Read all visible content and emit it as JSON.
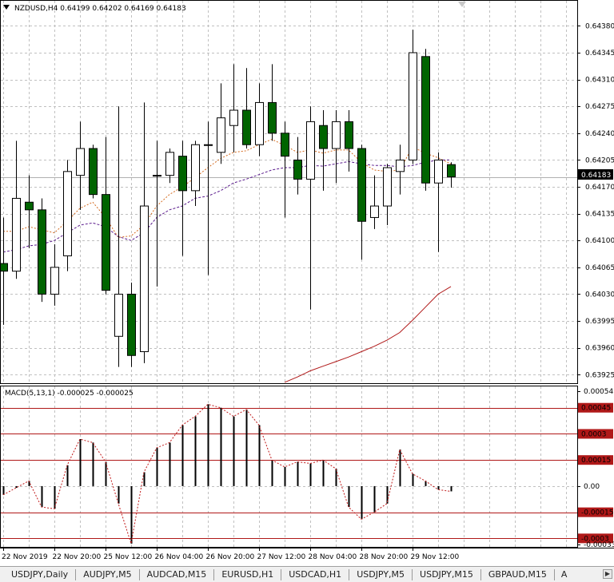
{
  "main_chart": {
    "header_text": "NZDUSD,H4  0.64199 0.64202 0.64169 0.64183",
    "current_price_label": "0.64183",
    "current_price": 0.64183,
    "price_axis_labels": [
      "0.64380",
      "0.64345",
      "0.64310",
      "0.64275",
      "0.64240",
      "0.64205",
      "0.64170",
      "0.64135",
      "0.64100",
      "0.64065",
      "0.64030",
      "0.63995",
      "0.63960",
      "0.63925"
    ],
    "y_range": [
      0.63918,
      0.64395
    ],
    "colors": {
      "bull_fill": "#ffffff",
      "bear_fill": "#006400",
      "outline": "#000000",
      "grid": "#c0c0c0",
      "ma_fast": "#d46a1e",
      "ma_slow": "#5a1a8c",
      "ma_long": "#b01818",
      "price_line": "#b0b0b0"
    },
    "candles": [
      {
        "o": 0.6407,
        "h": 0.6413,
        "l": 0.6399,
        "c": 0.6406
      },
      {
        "o": 0.6406,
        "h": 0.6423,
        "l": 0.6405,
        "c": 0.64155
      },
      {
        "o": 0.6415,
        "h": 0.64185,
        "l": 0.6409,
        "c": 0.6414
      },
      {
        "o": 0.6414,
        "h": 0.64155,
        "l": 0.6402,
        "c": 0.6403
      },
      {
        "o": 0.6403,
        "h": 0.64095,
        "l": 0.64015,
        "c": 0.64065
      },
      {
        "o": 0.6408,
        "h": 0.64205,
        "l": 0.6406,
        "c": 0.6419
      },
      {
        "o": 0.64185,
        "h": 0.64255,
        "l": 0.6414,
        "c": 0.6422
      },
      {
        "o": 0.6422,
        "h": 0.64225,
        "l": 0.64155,
        "c": 0.6416
      },
      {
        "o": 0.6416,
        "h": 0.64235,
        "l": 0.6403,
        "c": 0.64035
      },
      {
        "o": 0.63975,
        "h": 0.64275,
        "l": 0.63935,
        "c": 0.6403
      },
      {
        "o": 0.6403,
        "h": 0.64045,
        "l": 0.63935,
        "c": 0.6395
      },
      {
        "o": 0.63955,
        "h": 0.6428,
        "l": 0.6394,
        "c": 0.64145
      },
      {
        "o": 0.64185,
        "h": 0.6423,
        "l": 0.6404,
        "c": 0.64185
      },
      {
        "o": 0.64185,
        "h": 0.6422,
        "l": 0.64175,
        "c": 0.64215
      },
      {
        "o": 0.6421,
        "h": 0.6423,
        "l": 0.6408,
        "c": 0.64165
      },
      {
        "o": 0.64165,
        "h": 0.6423,
        "l": 0.64145,
        "c": 0.64225
      },
      {
        "o": 0.64225,
        "h": 0.64255,
        "l": 0.64055,
        "c": 0.64225
      },
      {
        "o": 0.64215,
        "h": 0.64305,
        "l": 0.642,
        "c": 0.6426
      },
      {
        "o": 0.6425,
        "h": 0.6433,
        "l": 0.64215,
        "c": 0.6427
      },
      {
        "o": 0.6427,
        "h": 0.64325,
        "l": 0.6422,
        "c": 0.64225
      },
      {
        "o": 0.64225,
        "h": 0.64305,
        "l": 0.6421,
        "c": 0.6428
      },
      {
        "o": 0.6428,
        "h": 0.6433,
        "l": 0.6423,
        "c": 0.6424
      },
      {
        "o": 0.6424,
        "h": 0.64255,
        "l": 0.6413,
        "c": 0.6421
      },
      {
        "o": 0.64205,
        "h": 0.64235,
        "l": 0.6416,
        "c": 0.6418
      },
      {
        "o": 0.6418,
        "h": 0.64275,
        "l": 0.6401,
        "c": 0.64255
      },
      {
        "o": 0.6425,
        "h": 0.6427,
        "l": 0.64165,
        "c": 0.6422
      },
      {
        "o": 0.6422,
        "h": 0.6427,
        "l": 0.64175,
        "c": 0.64255
      },
      {
        "o": 0.64255,
        "h": 0.6427,
        "l": 0.6419,
        "c": 0.6422
      },
      {
        "o": 0.6422,
        "h": 0.64225,
        "l": 0.64075,
        "c": 0.64125
      },
      {
        "o": 0.6413,
        "h": 0.64185,
        "l": 0.64115,
        "c": 0.64145
      },
      {
        "o": 0.64145,
        "h": 0.642,
        "l": 0.6412,
        "c": 0.64195
      },
      {
        "o": 0.6419,
        "h": 0.64225,
        "l": 0.6416,
        "c": 0.64205
      },
      {
        "o": 0.64205,
        "h": 0.64375,
        "l": 0.642,
        "c": 0.64345
      },
      {
        "o": 0.6434,
        "h": 0.6435,
        "l": 0.64165,
        "c": 0.64175
      },
      {
        "o": 0.64175,
        "h": 0.64215,
        "l": 0.64085,
        "c": 0.64205
      },
      {
        "o": 0.64199,
        "h": 0.64202,
        "l": 0.64169,
        "c": 0.64183
      }
    ],
    "ma_fast": [
      0.64112,
      0.64112,
      0.64118,
      0.64114,
      0.6411,
      0.64125,
      0.64142,
      0.6415,
      0.6413,
      0.64104,
      0.64106,
      0.6412,
      0.64145,
      0.6416,
      0.6417,
      0.64182,
      0.64195,
      0.64207,
      0.64215,
      0.64217,
      0.64225,
      0.64232,
      0.64224,
      0.64215,
      0.64218,
      0.64214,
      0.64218,
      0.64218,
      0.64202,
      0.64192,
      0.6419,
      0.64192,
      0.64222,
      0.64214,
      0.64208,
      0.642
    ],
    "ma_slow": [
      0.64085,
      0.64088,
      0.64093,
      0.64095,
      0.641,
      0.6411,
      0.6412,
      0.64123,
      0.64118,
      0.64105,
      0.641,
      0.6411,
      0.6413,
      0.6414,
      0.64145,
      0.64155,
      0.64158,
      0.64165,
      0.64175,
      0.6418,
      0.64186,
      0.64192,
      0.64195,
      0.64195,
      0.64198,
      0.64197,
      0.642,
      0.64203,
      0.642,
      0.64198,
      0.64198,
      0.64196,
      0.64198,
      0.64202,
      0.64205,
      0.64205
    ],
    "ma_long": {
      "start_index": 22,
      "values": [
        0.63915,
        0.63922,
        0.6393,
        0.63936,
        0.63942,
        0.63948,
        0.63955,
        0.63962,
        0.6397,
        0.6398,
        0.63996,
        0.64013,
        0.6403,
        0.6404
      ]
    }
  },
  "macd_panel": {
    "header_text": "MACD(5,13,1) -0.000025 -0.000025",
    "axis_labels": [
      {
        "text": "0.000545",
        "v": 0.000545
      },
      {
        "text": "0.00045",
        "v": 0.00045,
        "boxed": true
      },
      {
        "text": "0.0003",
        "v": 0.0003,
        "boxed": true
      },
      {
        "text": "0.00015",
        "v": 0.00015,
        "boxed": true
      },
      {
        "text": "0.00",
        "v": 0.0,
        "boxed": false
      },
      {
        "text": "-0.00015",
        "v": -0.00015,
        "boxed": true
      },
      {
        "text": "-0.0003",
        "v": -0.0003,
        "boxed": true
      },
      {
        "text": "-0.000335",
        "v": -0.000335
      }
    ],
    "levels": [
      0.00045,
      0.0003,
      0.00015,
      -0.00015,
      -0.0003
    ],
    "y_range": [
      -0.000335,
      0.000545
    ],
    "level_color": "#b01818",
    "label_box_color": "#b01818",
    "values": [
      -5e-05,
      -1e-05,
      3e-05,
      -0.00012,
      -0.00013,
      0.00012,
      0.00027,
      0.00025,
      0.00014,
      -0.0001,
      -0.00033,
      8e-05,
      0.00022,
      0.00025,
      0.00035,
      0.0004,
      0.00047,
      0.00045,
      0.0004,
      0.00044,
      0.00035,
      0.00015,
      0.00011,
      0.00014,
      0.00013,
      0.00015,
      0.0001,
      -0.00012,
      -0.00019,
      -0.00015,
      -0.0001,
      0.00021,
      7e-05,
      3e-05,
      -2e-05,
      -3e-05
    ]
  },
  "time_axis": {
    "labels": [
      {
        "text": "22 Nov 2019",
        "i": 0
      },
      {
        "text": "22 Nov 20:00",
        "i": 4
      },
      {
        "text": "25 Nov 12:00",
        "i": 8
      },
      {
        "text": "26 Nov 04:00",
        "i": 12
      },
      {
        "text": "26 Nov 20:00",
        "i": 16
      },
      {
        "text": "27 Nov 12:00",
        "i": 20
      },
      {
        "text": "28 Nov 04:00",
        "i": 24
      },
      {
        "text": "28 Nov 20:00",
        "i": 28
      },
      {
        "text": "29 Nov 12:00",
        "i": 32
      }
    ]
  },
  "tabs": [
    {
      "label": "USDJPY,Daily"
    },
    {
      "label": "AUDJPY,M5"
    },
    {
      "label": "AUDCAD,M15"
    },
    {
      "label": "EURUSD,H1"
    },
    {
      "label": "USDCAD,H1"
    },
    {
      "label": "USDJPY,M5"
    },
    {
      "label": "USDJPY,M15"
    },
    {
      "label": "GBPAUD,M15"
    }
  ],
  "tab_overflow_label": "A",
  "icons": {
    "scroll_marker": "triangle-down-icon",
    "header_arrow": "triangle-down-icon",
    "tab_next": "triangle-right-icon"
  }
}
